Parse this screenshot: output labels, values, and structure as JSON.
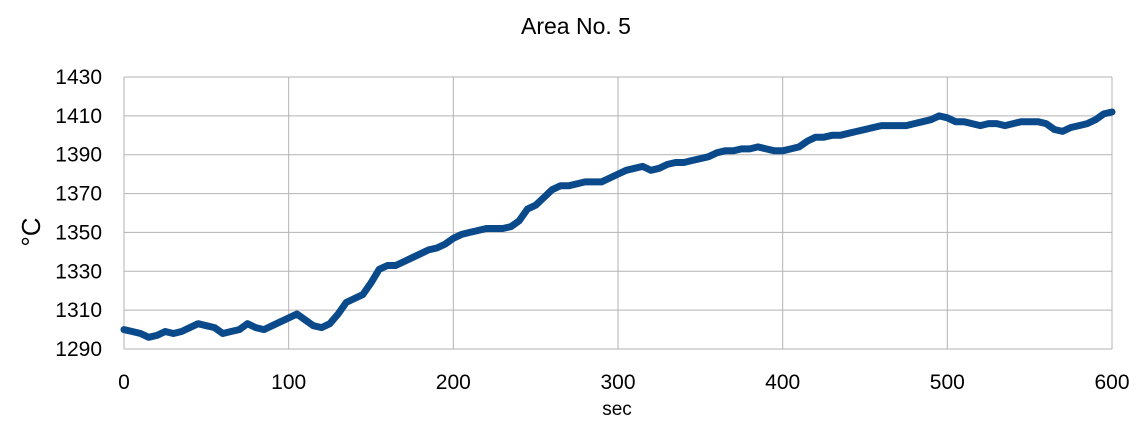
{
  "chart_data": {
    "type": "line",
    "title": "Area No. 5",
    "xlabel": "sec",
    "ylabel": "°C",
    "xlim": [
      0,
      600
    ],
    "ylim": [
      1290,
      1430
    ],
    "xticks": [
      0,
      100,
      200,
      300,
      400,
      500,
      600
    ],
    "yticks": [
      1290,
      1310,
      1330,
      1350,
      1370,
      1390,
      1410,
      1430
    ],
    "grid": true,
    "legend": "none",
    "series": [
      {
        "color": "#0b4a8a",
        "x": [
          0,
          5,
          10,
          15,
          20,
          25,
          30,
          35,
          40,
          45,
          50,
          55,
          60,
          65,
          70,
          75,
          80,
          85,
          90,
          95,
          100,
          105,
          110,
          115,
          120,
          125,
          130,
          135,
          140,
          145,
          150,
          155,
          160,
          165,
          170,
          175,
          180,
          185,
          190,
          195,
          200,
          205,
          210,
          215,
          220,
          225,
          230,
          235,
          240,
          245,
          250,
          255,
          260,
          265,
          270,
          275,
          280,
          285,
          290,
          295,
          300,
          305,
          310,
          315,
          320,
          325,
          330,
          335,
          340,
          345,
          350,
          355,
          360,
          365,
          370,
          375,
          380,
          385,
          390,
          395,
          400,
          405,
          410,
          415,
          420,
          425,
          430,
          435,
          440,
          445,
          450,
          455,
          460,
          465,
          470,
          475,
          480,
          485,
          490,
          495,
          500,
          505,
          510,
          515,
          520,
          525,
          530,
          535,
          540,
          545,
          550,
          555,
          560,
          565,
          570,
          575,
          580,
          585,
          590,
          595,
          600
        ],
        "values": [
          1300,
          1299,
          1298,
          1296,
          1297,
          1299,
          1298,
          1299,
          1301,
          1303,
          1302,
          1301,
          1298,
          1299,
          1300,
          1303,
          1301,
          1300,
          1302,
          1304,
          1306,
          1308,
          1305,
          1302,
          1301,
          1303,
          1308,
          1314,
          1316,
          1318,
          1324,
          1331,
          1333,
          1333,
          1335,
          1337,
          1339,
          1341,
          1342,
          1344,
          1347,
          1349,
          1350,
          1351,
          1352,
          1352,
          1352,
          1353,
          1356,
          1362,
          1364,
          1368,
          1372,
          1374,
          1374,
          1375,
          1376,
          1376,
          1376,
          1378,
          1380,
          1382,
          1383,
          1384,
          1382,
          1383,
          1385,
          1386,
          1386,
          1387,
          1388,
          1389,
          1391,
          1392,
          1392,
          1393,
          1393,
          1394,
          1393,
          1392,
          1392,
          1393,
          1394,
          1397,
          1399,
          1399,
          1400,
          1400,
          1401,
          1402,
          1403,
          1404,
          1405,
          1405,
          1405,
          1405,
          1406,
          1407,
          1408,
          1410,
          1409,
          1407,
          1407,
          1406,
          1405,
          1406,
          1406,
          1405,
          1406,
          1407,
          1407,
          1407,
          1406,
          1403,
          1402,
          1404,
          1405,
          1406,
          1408,
          1411,
          1412
        ]
      }
    ]
  }
}
